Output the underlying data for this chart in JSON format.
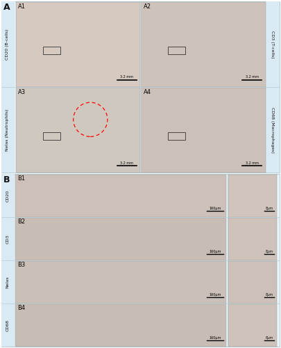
{
  "panel_A_label": "A",
  "panel_B_label": "B",
  "panel_A_row1_labels_left": "CD20 (B-cells)",
  "panel_A_row2_labels_left": "Nelas (Neutrophils)",
  "panel_A_row1_labels_right": "CD3 (T-cells)",
  "panel_A_row2_labels_right": "CD68 (Macrophages)",
  "panel_A_sublabels": [
    "A1",
    "A2",
    "A3",
    "A4"
  ],
  "panel_A_scalebar": "3.2 mm",
  "panel_B_row_labels": [
    "CD20",
    "CD3",
    "Nelas",
    "CD68"
  ],
  "panel_B_sublabels": [
    "B1",
    "B2",
    "B3",
    "B4"
  ],
  "panel_B_scalebar_left": "160μm",
  "panel_B_scalebar_right": "8μm",
  "fig_bg": "#ffffff",
  "panel_bg": "#e8f3f8",
  "label_strip_bg": "#daeaf5",
  "img_A_colors": [
    "#d6c9c0",
    "#cec3bb",
    "#cfc8bf",
    "#ccc1b9"
  ],
  "img_B_left_colors": [
    "#ccc0b8",
    "#c8bdb5",
    "#cbc0b8",
    "#c8bdb5"
  ],
  "img_B_right_colors": [
    "#d0c4bc",
    "#cec2ba",
    "#ccc0b8",
    "#cec2ba"
  ],
  "border_color": "#b0cdd8",
  "text_color": "#111111"
}
